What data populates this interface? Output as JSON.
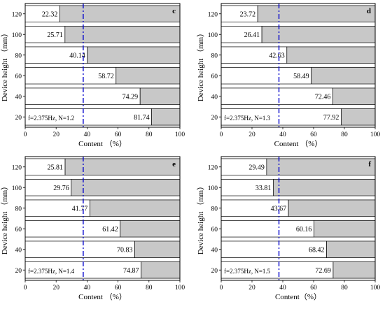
{
  "chart_data": [
    {
      "type": "bar",
      "panel_label": "c",
      "orientation": "horizontal",
      "stacked": true,
      "categories": [
        "20",
        "40",
        "60",
        "80",
        "100",
        "120"
      ],
      "values": [
        81.74,
        74.29,
        58.72,
        40.14,
        25.71,
        22.32
      ],
      "value_labels": [
        "81.74",
        "74.29",
        "58.72",
        "40.14",
        "25.71",
        "22.32"
      ],
      "condition": "f=2.375Hz,  N=1.2",
      "xlabel": "Content （%）",
      "ylabel": "Device height （mm）",
      "xlim": [
        0,
        100
      ],
      "xticks": [
        "0",
        "20",
        "40",
        "60",
        "80",
        "100"
      ],
      "reference_line": 37.5,
      "colors": {
        "value": "#ffffff",
        "remainder": "#c8c8c8",
        "reference": "#0000cc"
      }
    },
    {
      "type": "bar",
      "panel_label": "d",
      "orientation": "horizontal",
      "stacked": true,
      "categories": [
        "20",
        "40",
        "60",
        "80",
        "100",
        "120"
      ],
      "values": [
        77.92,
        72.46,
        58.49,
        42.63,
        26.41,
        23.72
      ],
      "value_labels": [
        "77.92",
        "72.46",
        "58.49",
        "42.63",
        "26.41",
        "23.72"
      ],
      "condition": "f=2.375Hz,  N=1.3",
      "xlabel": "Content （%）",
      "ylabel": "Device height （mm）",
      "xlim": [
        0,
        100
      ],
      "xticks": [
        "0",
        "20",
        "40",
        "60",
        "80",
        "100"
      ],
      "reference_line": 37.5,
      "colors": {
        "value": "#ffffff",
        "remainder": "#c8c8c8",
        "reference": "#0000cc"
      }
    },
    {
      "type": "bar",
      "panel_label": "e",
      "orientation": "horizontal",
      "stacked": true,
      "categories": [
        "20",
        "40",
        "60",
        "80",
        "100",
        "120"
      ],
      "values": [
        74.87,
        70.83,
        61.42,
        41.77,
        29.76,
        25.81
      ],
      "value_labels": [
        "74.87",
        "70.83",
        "61.42",
        "41.77",
        "29.76",
        "25.81"
      ],
      "condition": "f=2.375Hz,  N=1.4",
      "xlabel": "Content （%）",
      "ylabel": "Device height （mm）",
      "xlim": [
        0,
        100
      ],
      "xticks": [
        "0",
        "20",
        "40",
        "60",
        "80",
        "100"
      ],
      "reference_line": 37.5,
      "colors": {
        "value": "#ffffff",
        "remainder": "#c8c8c8",
        "reference": "#0000cc"
      }
    },
    {
      "type": "bar",
      "panel_label": "f",
      "orientation": "horizontal",
      "stacked": true,
      "categories": [
        "20",
        "40",
        "60",
        "80",
        "100",
        "120"
      ],
      "values": [
        72.69,
        68.42,
        60.16,
        43.67,
        33.81,
        29.49
      ],
      "value_labels": [
        "72.69",
        "68.42",
        "60.16",
        "43.67",
        "33.81",
        "29.49"
      ],
      "condition": "f=2.375Hz,  N=1.5",
      "xlabel": "Content（%）",
      "ylabel": "Device height （mm）",
      "xlim": [
        0,
        100
      ],
      "xticks": [
        "0",
        "20",
        "40",
        "60",
        "80",
        "100"
      ],
      "reference_line": 37.5,
      "colors": {
        "value": "#ffffff",
        "remainder": "#c8c8c8",
        "reference": "#0000cc"
      }
    }
  ]
}
